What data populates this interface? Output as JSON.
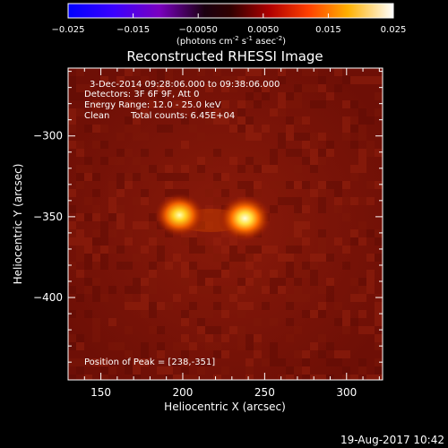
{
  "colorbar": {
    "ticks": [
      "-0.025",
      "-0.015",
      "-0.0050",
      "0.0050",
      "0.015",
      "0.025"
    ],
    "range": [
      -0.025,
      0.025
    ],
    "units_prefix": "(photons cm",
    "units_sup1": "-2",
    "units_mid": " s",
    "units_sup2": "-1",
    "units_mid2": " asec",
    "units_sup3": "-2",
    "units_suffix": ")",
    "colormap": "red-temperature"
  },
  "chart_data": {
    "type": "heatmap",
    "title": "Reconstructed RHESSI Image",
    "xlabel": "Heliocentric X (arcsec)",
    "ylabel": "Heliocentric Y (arcsec)",
    "xlim": [
      130,
      322
    ],
    "ylim": [
      -451,
      -258
    ],
    "x_ticks": [
      150,
      200,
      250,
      300
    ],
    "y_ticks": [
      -300,
      -350,
      -400
    ],
    "x_tick_labels": [
      "150",
      "200",
      "250",
      "300"
    ],
    "y_tick_labels": [
      "−300",
      "−350",
      "−400"
    ],
    "sources": [
      {
        "x": 198,
        "y": -349,
        "peak_fraction": 0.8
      },
      {
        "x": 238,
        "y": -351,
        "peak_fraction": 1.0
      }
    ],
    "annotations": {
      "line1": "3-Dec-2014 09:28:06.000 to 09:38:06.000",
      "line2": "Detectors: 3F 6F 9F, Att 0",
      "line3": "Energy Range: 12.0 - 25.0 keV",
      "line4_a": "Clean",
      "line4_b": "Total counts: 6.45E+04",
      "peak": "Position of Peak = [238,-351]"
    }
  },
  "footer": {
    "timestamp": "19-Aug-2017 10:42"
  }
}
